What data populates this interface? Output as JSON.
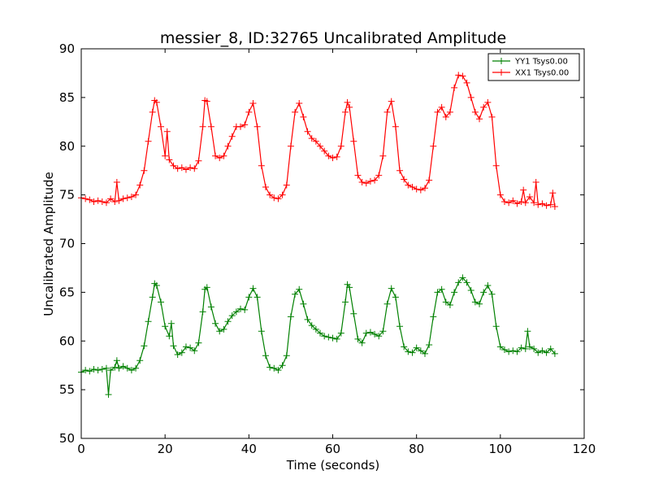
{
  "chart_data": {
    "type": "line",
    "title": "messier_8, ID:32765 Uncalibrated Amplitude",
    "xlabel": "Time (seconds)",
    "ylabel": "Uncalibrated Amplitude",
    "xlim": [
      0,
      120
    ],
    "ylim": [
      50,
      90
    ],
    "xticks": [
      "0",
      "20",
      "40",
      "60",
      "80",
      "100",
      "120"
    ],
    "yticks": [
      "50",
      "55",
      "60",
      "65",
      "70",
      "75",
      "80",
      "85",
      "90"
    ],
    "grid": false,
    "legend_position": "top-right",
    "series": [
      {
        "name": "YY1 Tsys0.00",
        "color": "#008000",
        "marker": "+",
        "points": [
          [
            0,
            56.8
          ],
          [
            1,
            57.0
          ],
          [
            2,
            56.9
          ],
          [
            3,
            57.1
          ],
          [
            4,
            57.0
          ],
          [
            5,
            57.1
          ],
          [
            6,
            57.2
          ],
          [
            6.5,
            54.5
          ],
          [
            7,
            57.0
          ],
          [
            8,
            57.3
          ],
          [
            8.5,
            58.0
          ],
          [
            9,
            57.2
          ],
          [
            10,
            57.4
          ],
          [
            11,
            57.2
          ],
          [
            12,
            57.0
          ],
          [
            13,
            57.2
          ],
          [
            14,
            58.0
          ],
          [
            15,
            59.5
          ],
          [
            16,
            62.0
          ],
          [
            17,
            64.5
          ],
          [
            17.5,
            65.9
          ],
          [
            18,
            65.7
          ],
          [
            19,
            64.0
          ],
          [
            20,
            61.5
          ],
          [
            21,
            60.5
          ],
          [
            21.5,
            61.8
          ],
          [
            22,
            59.5
          ],
          [
            23,
            58.6
          ],
          [
            24,
            58.8
          ],
          [
            25,
            59.4
          ],
          [
            26,
            59.3
          ],
          [
            27,
            59.0
          ],
          [
            28,
            59.8
          ],
          [
            29,
            63.0
          ],
          [
            29.5,
            65.3
          ],
          [
            30,
            65.5
          ],
          [
            31,
            63.5
          ],
          [
            32,
            61.8
          ],
          [
            33,
            61.0
          ],
          [
            34,
            61.2
          ],
          [
            35,
            62.0
          ],
          [
            36,
            62.6
          ],
          [
            37,
            63.0
          ],
          [
            38,
            63.3
          ],
          [
            39,
            63.2
          ],
          [
            40,
            64.5
          ],
          [
            41,
            65.4
          ],
          [
            42,
            64.5
          ],
          [
            43,
            61.0
          ],
          [
            44,
            58.5
          ],
          [
            45,
            57.3
          ],
          [
            46,
            57.2
          ],
          [
            47,
            57.0
          ],
          [
            48,
            57.5
          ],
          [
            49,
            58.5
          ],
          [
            50,
            62.5
          ],
          [
            51,
            64.8
          ],
          [
            52,
            65.3
          ],
          [
            53,
            63.8
          ],
          [
            54,
            62.2
          ],
          [
            55,
            61.6
          ],
          [
            56,
            61.2
          ],
          [
            57,
            60.8
          ],
          [
            58,
            60.5
          ],
          [
            59,
            60.4
          ],
          [
            60,
            60.3
          ],
          [
            61,
            60.2
          ],
          [
            62,
            60.8
          ],
          [
            63,
            64.0
          ],
          [
            63.5,
            65.8
          ],
          [
            64,
            65.5
          ],
          [
            65,
            62.8
          ],
          [
            66,
            60.2
          ],
          [
            67,
            59.8
          ],
          [
            68,
            60.8
          ],
          [
            69,
            60.9
          ],
          [
            70,
            60.7
          ],
          [
            71,
            60.5
          ],
          [
            72,
            61.0
          ],
          [
            73,
            63.8
          ],
          [
            74,
            65.4
          ],
          [
            75,
            64.5
          ],
          [
            76,
            61.5
          ],
          [
            77,
            59.4
          ],
          [
            78,
            58.9
          ],
          [
            79,
            58.8
          ],
          [
            80,
            59.3
          ],
          [
            81,
            59.0
          ],
          [
            82,
            58.7
          ],
          [
            83,
            59.6
          ],
          [
            84,
            62.5
          ],
          [
            85,
            65.0
          ],
          [
            86,
            65.3
          ],
          [
            87,
            64.0
          ],
          [
            88,
            63.7
          ],
          [
            89,
            65.0
          ],
          [
            90,
            66.0
          ],
          [
            91,
            66.5
          ],
          [
            92,
            66.0
          ],
          [
            93,
            65.2
          ],
          [
            94,
            64.0
          ],
          [
            95,
            63.8
          ],
          [
            96,
            65.0
          ],
          [
            97,
            65.7
          ],
          [
            98,
            64.8
          ],
          [
            99,
            61.5
          ],
          [
            100,
            59.4
          ],
          [
            101,
            59.1
          ],
          [
            102,
            58.9
          ],
          [
            103,
            59.0
          ],
          [
            104,
            58.9
          ],
          [
            105,
            59.3
          ],
          [
            106,
            59.2
          ],
          [
            106.5,
            61.0
          ],
          [
            107,
            59.4
          ],
          [
            108,
            59.2
          ],
          [
            109,
            58.8
          ],
          [
            110,
            59.0
          ],
          [
            111,
            58.8
          ],
          [
            112,
            59.2
          ],
          [
            113,
            58.7
          ]
        ]
      },
      {
        "name": "XX1 Tsys0.00",
        "color": "#ff0000",
        "marker": "+",
        "points": [
          [
            0,
            74.7
          ],
          [
            1,
            74.6
          ],
          [
            2,
            74.5
          ],
          [
            3,
            74.3
          ],
          [
            4,
            74.4
          ],
          [
            5,
            74.3
          ],
          [
            6,
            74.2
          ],
          [
            7,
            74.6
          ],
          [
            8,
            74.3
          ],
          [
            8.5,
            76.3
          ],
          [
            9,
            74.4
          ],
          [
            10,
            74.6
          ],
          [
            11,
            74.7
          ],
          [
            12,
            74.8
          ],
          [
            13,
            75.0
          ],
          [
            14,
            76.0
          ],
          [
            15,
            77.5
          ],
          [
            16,
            80.5
          ],
          [
            17,
            83.5
          ],
          [
            17.5,
            84.7
          ],
          [
            18,
            84.5
          ],
          [
            19,
            82.0
          ],
          [
            20,
            79.0
          ],
          [
            20.5,
            81.5
          ],
          [
            21,
            78.6
          ],
          [
            22,
            78.0
          ],
          [
            23,
            77.7
          ],
          [
            24,
            77.8
          ],
          [
            25,
            77.6
          ],
          [
            26,
            77.8
          ],
          [
            27,
            77.7
          ],
          [
            28,
            78.5
          ],
          [
            29,
            82.0
          ],
          [
            29.5,
            84.7
          ],
          [
            30,
            84.6
          ],
          [
            31,
            82.0
          ],
          [
            32,
            79.0
          ],
          [
            33,
            78.8
          ],
          [
            34,
            79.0
          ],
          [
            35,
            80.0
          ],
          [
            36,
            81.0
          ],
          [
            37,
            82.0
          ],
          [
            38,
            82.0
          ],
          [
            39,
            82.2
          ],
          [
            40,
            83.5
          ],
          [
            41,
            84.4
          ],
          [
            42,
            82.0
          ],
          [
            43,
            78.0
          ],
          [
            44,
            75.8
          ],
          [
            45,
            75.0
          ],
          [
            46,
            74.7
          ],
          [
            47,
            74.6
          ],
          [
            48,
            75.0
          ],
          [
            49,
            76.0
          ],
          [
            50,
            80.0
          ],
          [
            51,
            83.5
          ],
          [
            52,
            84.4
          ],
          [
            53,
            83.0
          ],
          [
            54,
            81.5
          ],
          [
            55,
            80.8
          ],
          [
            56,
            80.5
          ],
          [
            57,
            80.0
          ],
          [
            58,
            79.5
          ],
          [
            59,
            79.0
          ],
          [
            60,
            78.8
          ],
          [
            61,
            78.9
          ],
          [
            62,
            80.0
          ],
          [
            63,
            83.5
          ],
          [
            63.5,
            84.5
          ],
          [
            64,
            84.0
          ],
          [
            65,
            80.5
          ],
          [
            66,
            77.0
          ],
          [
            67,
            76.3
          ],
          [
            68,
            76.2
          ],
          [
            69,
            76.4
          ],
          [
            70,
            76.5
          ],
          [
            71,
            77.0
          ],
          [
            72,
            79.0
          ],
          [
            73,
            83.5
          ],
          [
            74,
            84.6
          ],
          [
            75,
            82.0
          ],
          [
            76,
            77.5
          ],
          [
            77,
            76.6
          ],
          [
            78,
            76.0
          ],
          [
            79,
            75.8
          ],
          [
            80,
            75.6
          ],
          [
            81,
            75.5
          ],
          [
            82,
            75.7
          ],
          [
            83,
            76.5
          ],
          [
            84,
            80.0
          ],
          [
            85,
            83.5
          ],
          [
            86,
            84.0
          ],
          [
            87,
            83.0
          ],
          [
            88,
            83.5
          ],
          [
            89,
            86.0
          ],
          [
            90,
            87.3
          ],
          [
            91,
            87.2
          ],
          [
            92,
            86.5
          ],
          [
            93,
            85.0
          ],
          [
            94,
            83.5
          ],
          [
            95,
            82.8
          ],
          [
            96,
            84.0
          ],
          [
            97,
            84.5
          ],
          [
            98,
            83.0
          ],
          [
            99,
            78.0
          ],
          [
            100,
            75.0
          ],
          [
            101,
            74.3
          ],
          [
            102,
            74.2
          ],
          [
            103,
            74.4
          ],
          [
            104,
            74.1
          ],
          [
            105,
            74.3
          ],
          [
            105.5,
            75.5
          ],
          [
            106,
            74.2
          ],
          [
            107,
            74.8
          ],
          [
            108,
            74.2
          ],
          [
            108.5,
            76.3
          ],
          [
            109,
            74.0
          ],
          [
            110,
            74.1
          ],
          [
            111,
            73.9
          ],
          [
            112,
            74.0
          ],
          [
            112.5,
            75.2
          ],
          [
            113,
            73.8
          ]
        ]
      }
    ]
  }
}
